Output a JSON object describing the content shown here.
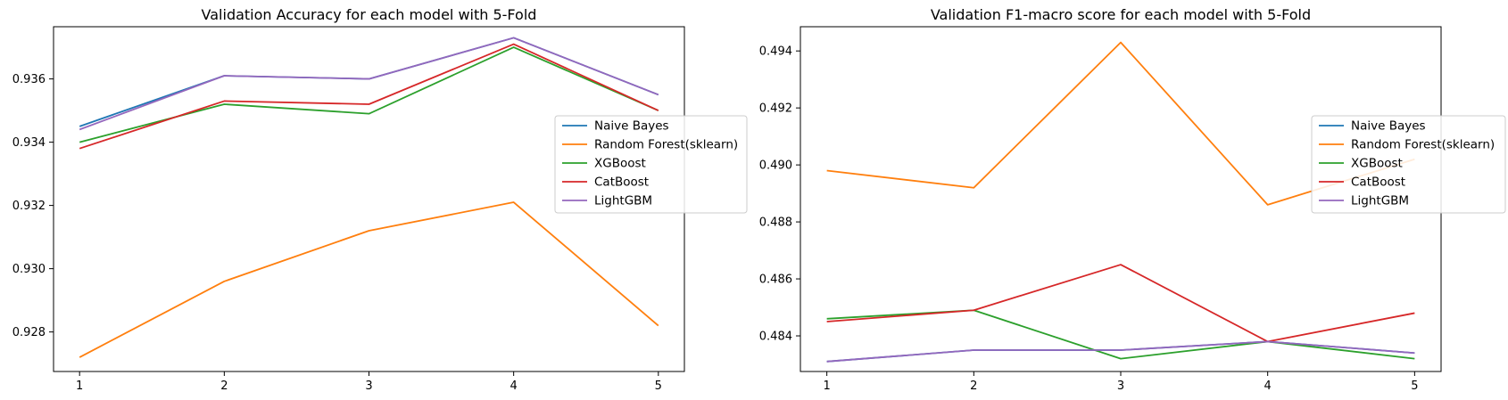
{
  "chart_data": [
    {
      "type": "line",
      "title": "Validation Accuracy for each model with 5-Fold",
      "xlabel": "",
      "ylabel": "",
      "x": [
        1,
        2,
        3,
        4,
        5
      ],
      "xlim": [
        0.82,
        5.18
      ],
      "ylim": [
        0.92675,
        0.93765
      ],
      "yticks": [
        0.928,
        0.93,
        0.932,
        0.934,
        0.936
      ],
      "ytick_labels": [
        "0.928",
        "0.930",
        "0.932",
        "0.934",
        "0.936"
      ],
      "xtick_labels": [
        "1",
        "2",
        "3",
        "4",
        "5"
      ],
      "grid": false,
      "legend": "center-right",
      "series": [
        {
          "name": "Naive Bayes",
          "color": "#1f77b4",
          "values": [
            0.9345,
            0.9361,
            0.936,
            0.9373,
            0.9355
          ]
        },
        {
          "name": "Random Forest(sklearn)",
          "color": "#ff7f0e",
          "values": [
            0.9272,
            0.9296,
            0.9312,
            0.9321,
            0.9282
          ]
        },
        {
          "name": "XGBoost",
          "color": "#2ca02c",
          "values": [
            0.934,
            0.9352,
            0.9349,
            0.937,
            0.935
          ]
        },
        {
          "name": "CatBoost",
          "color": "#d62728",
          "values": [
            0.9338,
            0.9353,
            0.9352,
            0.9371,
            0.935
          ]
        },
        {
          "name": "LightGBM",
          "color": "#9467bd",
          "values": [
            0.9344,
            0.9361,
            0.936,
            0.9373,
            0.9355
          ]
        }
      ]
    },
    {
      "type": "line",
      "title": "Validation F1-macro score for each model with 5-Fold",
      "xlabel": "",
      "ylabel": "",
      "x": [
        1,
        2,
        3,
        4,
        5
      ],
      "xlim": [
        0.82,
        5.18
      ],
      "ylim": [
        0.48275,
        0.49485
      ],
      "yticks": [
        0.484,
        0.486,
        0.488,
        0.49,
        0.492,
        0.494
      ],
      "ytick_labels": [
        "0.484",
        "0.486",
        "0.488",
        "0.490",
        "0.492",
        "0.494"
      ],
      "xtick_labels": [
        "1",
        "2",
        "3",
        "4",
        "5"
      ],
      "grid": false,
      "legend": "center-right",
      "series": [
        {
          "name": "Naive Bayes",
          "color": "#1f77b4",
          "values": [
            0.4831,
            0.4835,
            0.4835,
            0.4838,
            0.4834
          ]
        },
        {
          "name": "Random Forest(sklearn)",
          "color": "#ff7f0e",
          "values": [
            0.4898,
            0.4892,
            0.4943,
            0.4886,
            0.4902
          ]
        },
        {
          "name": "XGBoost",
          "color": "#2ca02c",
          "values": [
            0.4846,
            0.4849,
            0.4832,
            0.4838,
            0.4832
          ]
        },
        {
          "name": "CatBoost",
          "color": "#d62728",
          "values": [
            0.4845,
            0.4849,
            0.4865,
            0.4838,
            0.4848
          ]
        },
        {
          "name": "LightGBM",
          "color": "#9467bd",
          "values": [
            0.4831,
            0.4835,
            0.4835,
            0.4838,
            0.4834
          ]
        }
      ]
    }
  ]
}
